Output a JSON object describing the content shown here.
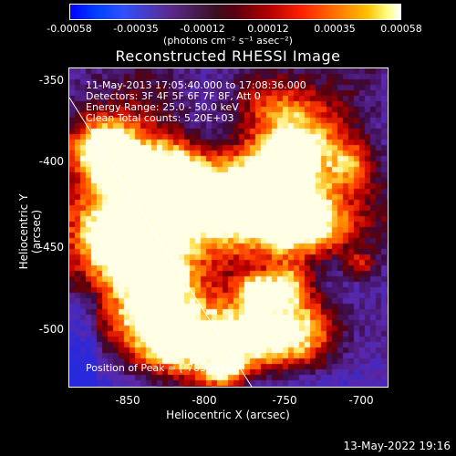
{
  "colorbar": {
    "ticks": [
      "-0.00058",
      "-0.00035",
      "-0.00012",
      "0.00012",
      "0.00035",
      "0.00058"
    ],
    "units": "(photons cm⁻² s⁻¹ asec⁻²)"
  },
  "title": "Reconstructed RHESSI Image",
  "annotations": {
    "time": "11-May-2013 17:05:40.000 to 17:08:36.000",
    "detectors": "Detectors: 3F 4F 5F 6F 7F 8F, Att 0",
    "energy": "Energy Range: 25.0 - 50.0 keV",
    "clean": "Clean     Total counts: 5.20E+03",
    "peak": "Position of Peak = [-783,-418]"
  },
  "axes": {
    "xlabel": "Heliocentric X (arcsec)",
    "ylabel": "Heliocentric Y (arcsec)",
    "xticks": [
      "-850",
      "-800",
      "-750",
      "-700"
    ],
    "yticks": [
      "-350",
      "-400",
      "-450",
      "-500"
    ]
  },
  "timestamp": "13-May-2022 19:16"
}
